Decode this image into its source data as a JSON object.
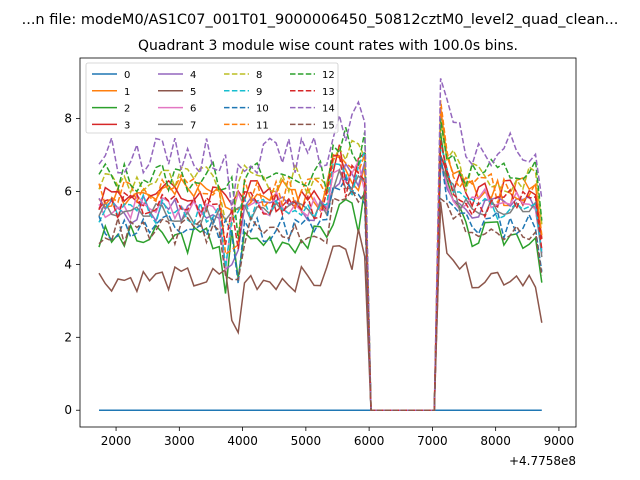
{
  "figure": {
    "suptitle": "...n file: modeM0/AS1C07_001T01_9000006450_50812cztM0_level2_quad_clean..."
  },
  "chart_data": {
    "type": "line",
    "title": "Quadrant 3 module wise count rates with 100.0s bins.",
    "xlabel": "",
    "ylabel": "",
    "offset_label": "+4.7758e8",
    "xlim": [
      1430,
      9270
    ],
    "ylim": [
      -0.46,
      9.66
    ],
    "xticks": [
      2000,
      3000,
      4000,
      5000,
      6000,
      7000,
      8000,
      9000
    ],
    "yticks": [
      0,
      2,
      4,
      6,
      8
    ],
    "x_start": 1730,
    "x_step": 100,
    "gap_x": [
      6030,
      6130,
      6230,
      6330,
      6430,
      6530,
      6630,
      6730,
      6830,
      6930,
      7030
    ],
    "x_resume": 7130,
    "x_end": 8730,
    "legend_position": "upper-left",
    "legend_ncols": 4,
    "series": [
      {
        "name": "0",
        "color": "#1f77b4",
        "dash": "solid",
        "base": 0.0,
        "amp": 0.0,
        "seed": 1,
        "gap_level": 0
      },
      {
        "name": "1",
        "color": "#ff7f0e",
        "dash": "solid",
        "base": 5.9,
        "amp": 0.45,
        "seed": 2,
        "peak": 8.3,
        "gap_level": 0
      },
      {
        "name": "2",
        "color": "#2ca02c",
        "dash": "solid",
        "base": 4.7,
        "amp": 0.4,
        "seed": 3,
        "peak": 7.6,
        "gap_level": 0
      },
      {
        "name": "3",
        "color": "#d62728",
        "dash": "solid",
        "base": 5.9,
        "amp": 0.45,
        "seed": 4,
        "peak": 7.0,
        "gap_level": 0
      },
      {
        "name": "4",
        "color": "#9467bd",
        "dash": "solid",
        "base": 5.5,
        "amp": 0.4,
        "seed": 5,
        "peak": 6.9,
        "gap_level": 0
      },
      {
        "name": "5",
        "color": "#8c564b",
        "dash": "solid",
        "base": 3.6,
        "amp": 0.35,
        "seed": 6,
        "peak": 5.7,
        "gap_level": 0
      },
      {
        "name": "6",
        "color": "#e377c2",
        "dash": "solid",
        "base": 5.6,
        "amp": 0.4,
        "seed": 7,
        "peak": 6.8,
        "gap_level": 0
      },
      {
        "name": "7",
        "color": "#7f7f7f",
        "dash": "solid",
        "base": 5.4,
        "amp": 0.35,
        "seed": 8,
        "peak": 6.8,
        "gap_level": 0
      },
      {
        "name": "8",
        "color": "#bcbd22",
        "dash": "dashed",
        "base": 6.3,
        "amp": 0.45,
        "seed": 9,
        "peak": 7.9,
        "gap_level": 0
      },
      {
        "name": "9",
        "color": "#17becf",
        "dash": "dashed",
        "base": 5.5,
        "amp": 0.4,
        "seed": 10,
        "peak": 7.3,
        "gap_level": 0
      },
      {
        "name": "10",
        "color": "#1f77b4",
        "dash": "dashed",
        "base": 5.0,
        "amp": 0.4,
        "seed": 11,
        "peak": 7.0,
        "gap_level": 0
      },
      {
        "name": "11",
        "color": "#ff7f0e",
        "dash": "dashed",
        "base": 6.0,
        "amp": 0.45,
        "seed": 12,
        "peak": 8.5,
        "gap_level": 0
      },
      {
        "name": "12",
        "color": "#2ca02c",
        "dash": "dashed",
        "base": 6.4,
        "amp": 0.45,
        "seed": 13,
        "peak": 8.0,
        "gap_level": 0
      },
      {
        "name": "13",
        "color": "#d62728",
        "dash": "dashed",
        "base": 5.6,
        "amp": 0.4,
        "seed": 14,
        "peak": 7.4,
        "gap_level": 0
      },
      {
        "name": "14",
        "color": "#9467bd",
        "dash": "dashed",
        "base": 7.0,
        "amp": 0.5,
        "seed": 15,
        "peak": 9.1,
        "gap_level": 0
      },
      {
        "name": "15",
        "color": "#8c564b",
        "dash": "dashed",
        "base": 4.9,
        "amp": 0.4,
        "seed": 16,
        "peak": 5.8,
        "gap_level": 0
      }
    ]
  }
}
